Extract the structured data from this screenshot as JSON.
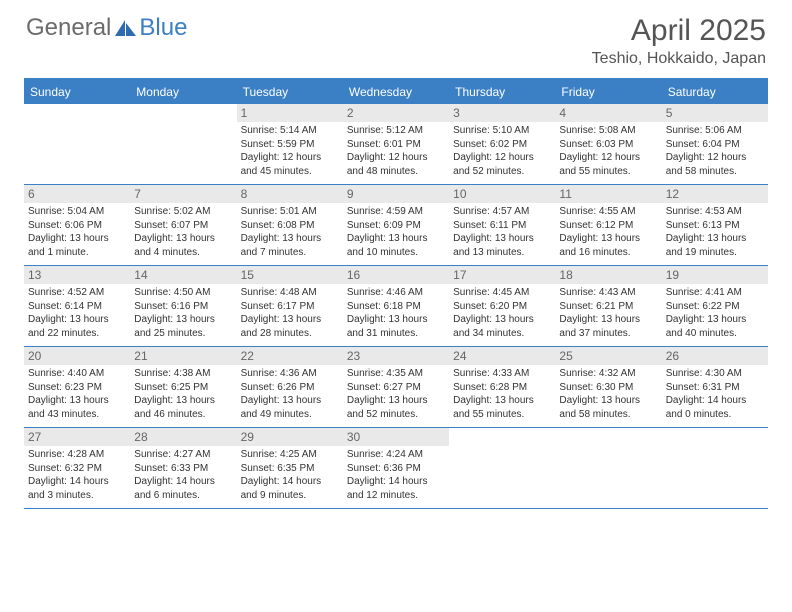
{
  "brand": {
    "part1": "General",
    "part2": "Blue"
  },
  "title": "April 2025",
  "location": "Teshio, Hokkaido, Japan",
  "colors": {
    "accent": "#3b7fc4",
    "headerText": "#ffffff",
    "dayBg": "#e9e9e9"
  },
  "dayNames": [
    "Sunday",
    "Monday",
    "Tuesday",
    "Wednesday",
    "Thursday",
    "Friday",
    "Saturday"
  ],
  "weeks": [
    [
      null,
      null,
      {
        "n": "1",
        "sr": "5:14 AM",
        "ss": "5:59 PM",
        "dl": "12 hours and 45 minutes."
      },
      {
        "n": "2",
        "sr": "5:12 AM",
        "ss": "6:01 PM",
        "dl": "12 hours and 48 minutes."
      },
      {
        "n": "3",
        "sr": "5:10 AM",
        "ss": "6:02 PM",
        "dl": "12 hours and 52 minutes."
      },
      {
        "n": "4",
        "sr": "5:08 AM",
        "ss": "6:03 PM",
        "dl": "12 hours and 55 minutes."
      },
      {
        "n": "5",
        "sr": "5:06 AM",
        "ss": "6:04 PM",
        "dl": "12 hours and 58 minutes."
      }
    ],
    [
      {
        "n": "6",
        "sr": "5:04 AM",
        "ss": "6:06 PM",
        "dl": "13 hours and 1 minute."
      },
      {
        "n": "7",
        "sr": "5:02 AM",
        "ss": "6:07 PM",
        "dl": "13 hours and 4 minutes."
      },
      {
        "n": "8",
        "sr": "5:01 AM",
        "ss": "6:08 PM",
        "dl": "13 hours and 7 minutes."
      },
      {
        "n": "9",
        "sr": "4:59 AM",
        "ss": "6:09 PM",
        "dl": "13 hours and 10 minutes."
      },
      {
        "n": "10",
        "sr": "4:57 AM",
        "ss": "6:11 PM",
        "dl": "13 hours and 13 minutes."
      },
      {
        "n": "11",
        "sr": "4:55 AM",
        "ss": "6:12 PM",
        "dl": "13 hours and 16 minutes."
      },
      {
        "n": "12",
        "sr": "4:53 AM",
        "ss": "6:13 PM",
        "dl": "13 hours and 19 minutes."
      }
    ],
    [
      {
        "n": "13",
        "sr": "4:52 AM",
        "ss": "6:14 PM",
        "dl": "13 hours and 22 minutes."
      },
      {
        "n": "14",
        "sr": "4:50 AM",
        "ss": "6:16 PM",
        "dl": "13 hours and 25 minutes."
      },
      {
        "n": "15",
        "sr": "4:48 AM",
        "ss": "6:17 PM",
        "dl": "13 hours and 28 minutes."
      },
      {
        "n": "16",
        "sr": "4:46 AM",
        "ss": "6:18 PM",
        "dl": "13 hours and 31 minutes."
      },
      {
        "n": "17",
        "sr": "4:45 AM",
        "ss": "6:20 PM",
        "dl": "13 hours and 34 minutes."
      },
      {
        "n": "18",
        "sr": "4:43 AM",
        "ss": "6:21 PM",
        "dl": "13 hours and 37 minutes."
      },
      {
        "n": "19",
        "sr": "4:41 AM",
        "ss": "6:22 PM",
        "dl": "13 hours and 40 minutes."
      }
    ],
    [
      {
        "n": "20",
        "sr": "4:40 AM",
        "ss": "6:23 PM",
        "dl": "13 hours and 43 minutes."
      },
      {
        "n": "21",
        "sr": "4:38 AM",
        "ss": "6:25 PM",
        "dl": "13 hours and 46 minutes."
      },
      {
        "n": "22",
        "sr": "4:36 AM",
        "ss": "6:26 PM",
        "dl": "13 hours and 49 minutes."
      },
      {
        "n": "23",
        "sr": "4:35 AM",
        "ss": "6:27 PM",
        "dl": "13 hours and 52 minutes."
      },
      {
        "n": "24",
        "sr": "4:33 AM",
        "ss": "6:28 PM",
        "dl": "13 hours and 55 minutes."
      },
      {
        "n": "25",
        "sr": "4:32 AM",
        "ss": "6:30 PM",
        "dl": "13 hours and 58 minutes."
      },
      {
        "n": "26",
        "sr": "4:30 AM",
        "ss": "6:31 PM",
        "dl": "14 hours and 0 minutes."
      }
    ],
    [
      {
        "n": "27",
        "sr": "4:28 AM",
        "ss": "6:32 PM",
        "dl": "14 hours and 3 minutes."
      },
      {
        "n": "28",
        "sr": "4:27 AM",
        "ss": "6:33 PM",
        "dl": "14 hours and 6 minutes."
      },
      {
        "n": "29",
        "sr": "4:25 AM",
        "ss": "6:35 PM",
        "dl": "14 hours and 9 minutes."
      },
      {
        "n": "30",
        "sr": "4:24 AM",
        "ss": "6:36 PM",
        "dl": "14 hours and 12 minutes."
      },
      null,
      null,
      null
    ]
  ]
}
